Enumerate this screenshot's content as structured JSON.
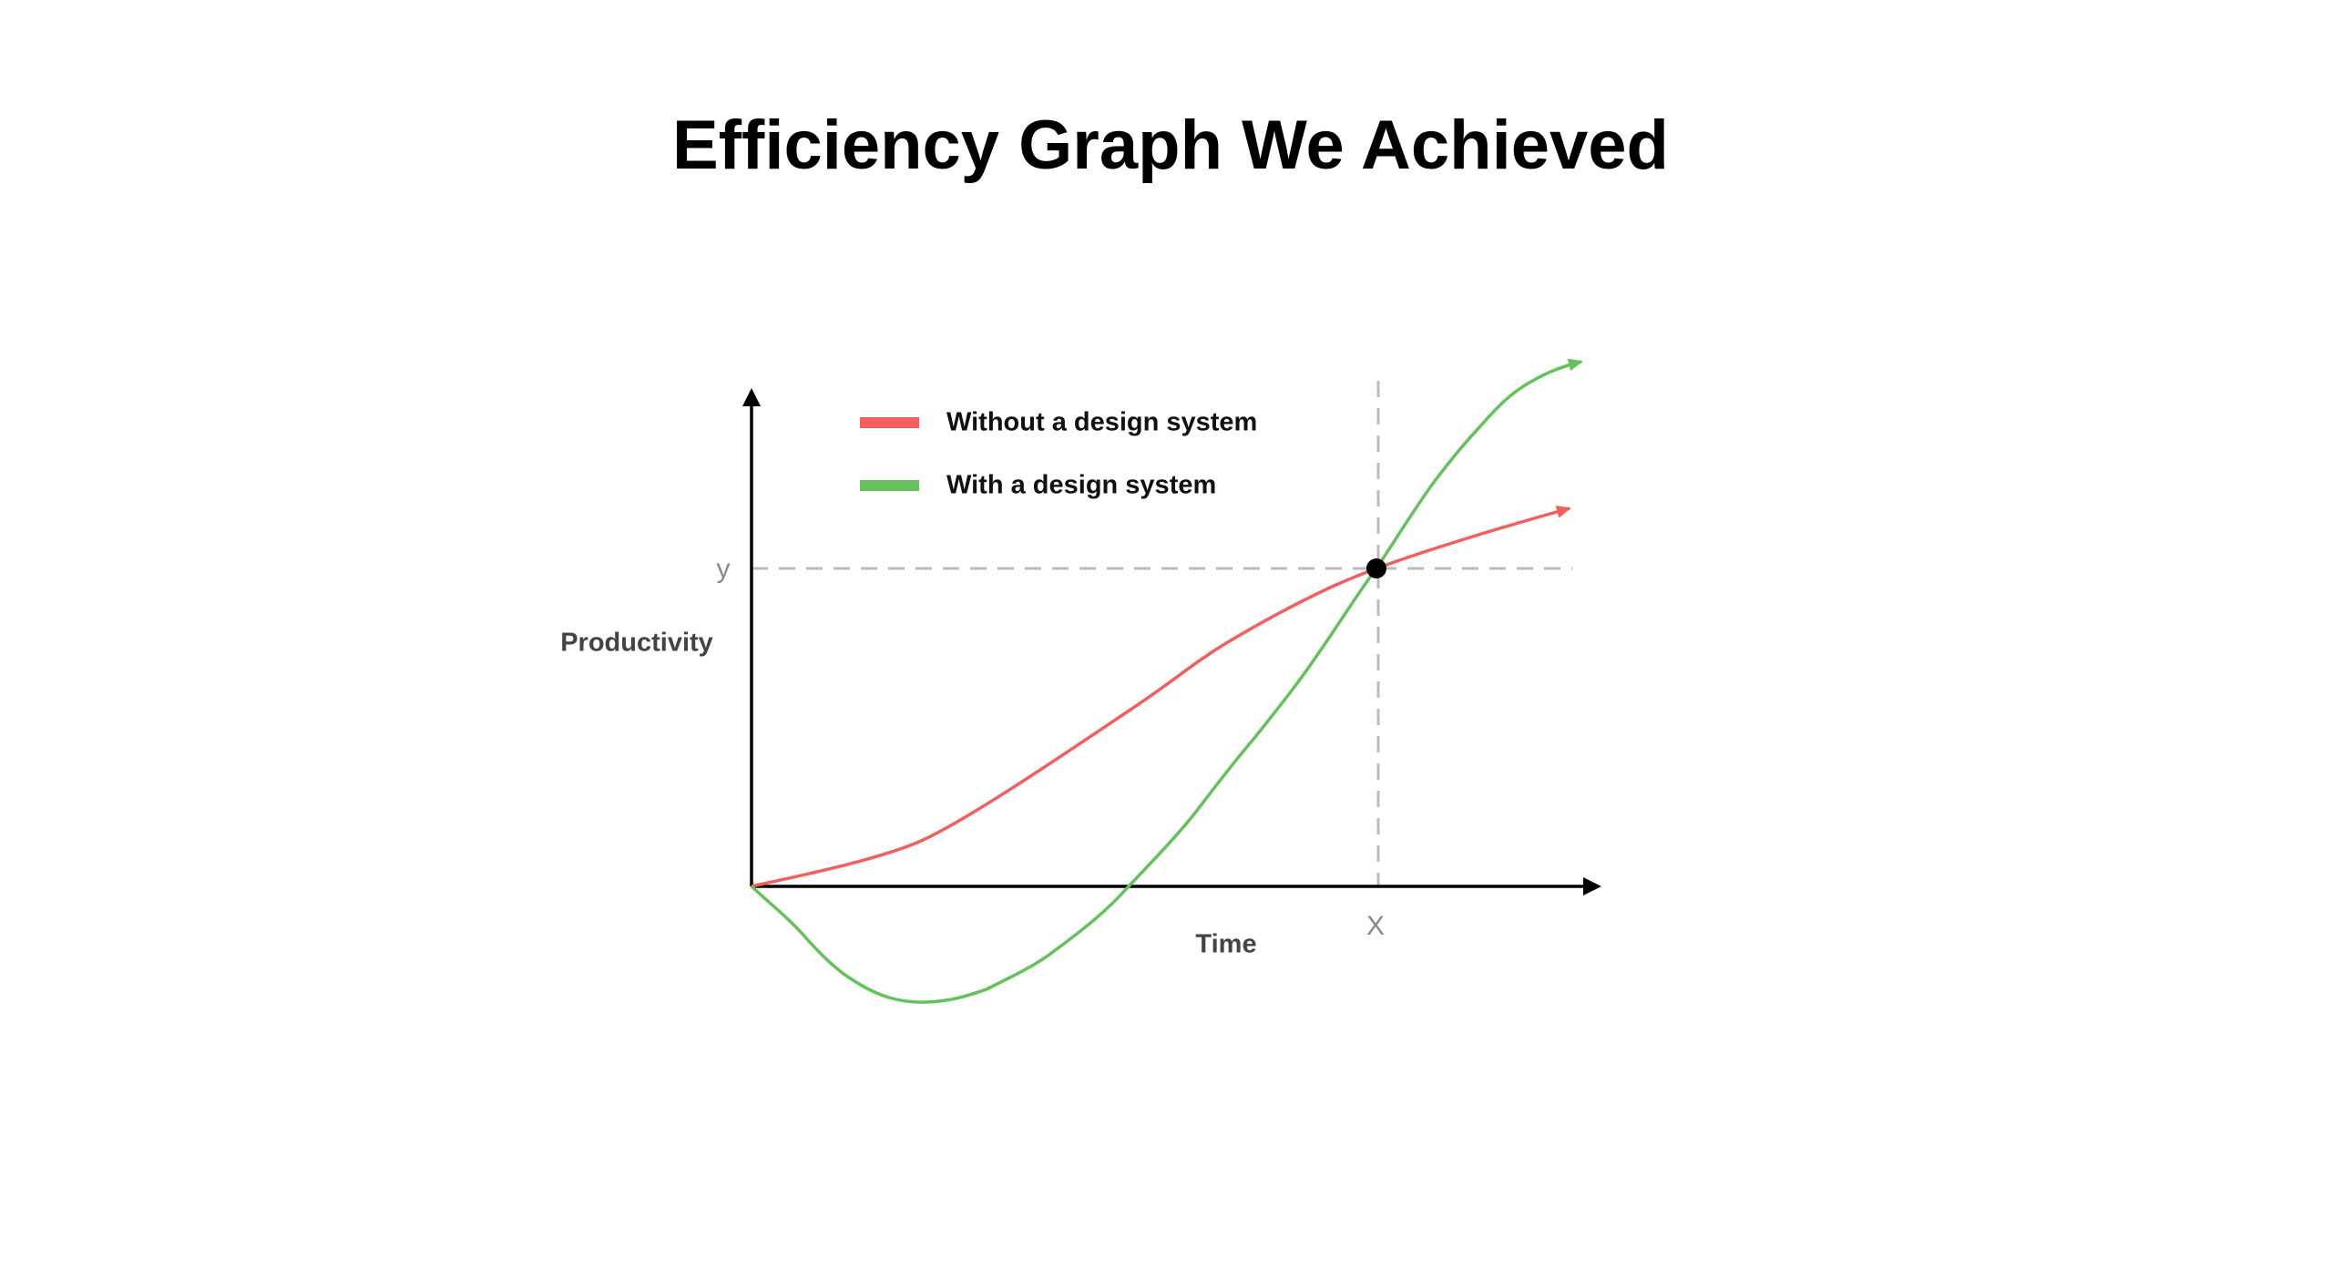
{
  "header": {
    "title": "Efficiency Graph We Achieved"
  },
  "legend": [
    {
      "label": "Without a design system"
    },
    {
      "label": "With a design system"
    }
  ],
  "axes": {
    "y_label": "Productivity",
    "x_label": "Time",
    "y_marker": "y",
    "x_marker": "X"
  }
}
